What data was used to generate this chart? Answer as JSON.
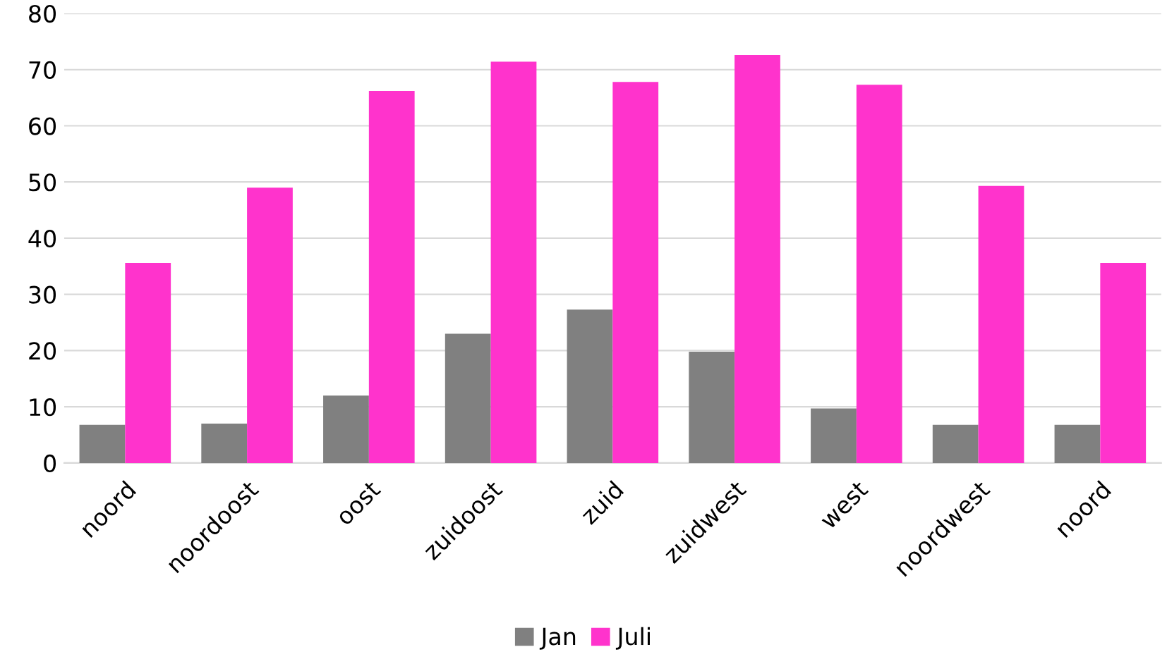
{
  "chart_data": {
    "type": "bar",
    "categories": [
      "noord",
      "noordoost",
      "oost",
      "zuidoost",
      "zuid",
      "zuidwest",
      "west",
      "noordwest",
      "noord"
    ],
    "series": [
      {
        "name": "Jan",
        "color": "#808080",
        "values": [
          6.8,
          7,
          12,
          23,
          27.3,
          19.8,
          9.7,
          6.8,
          6.8
        ]
      },
      {
        "name": "Juli",
        "color": "#ff33cc",
        "values": [
          35.6,
          49,
          66.2,
          71.4,
          67.8,
          72.6,
          67.3,
          49.3,
          35.6
        ]
      }
    ],
    "ylim": [
      0,
      80
    ],
    "yticks": [
      0,
      10,
      20,
      30,
      40,
      50,
      60,
      70,
      80
    ],
    "grid": "y",
    "legend": "bottom"
  }
}
